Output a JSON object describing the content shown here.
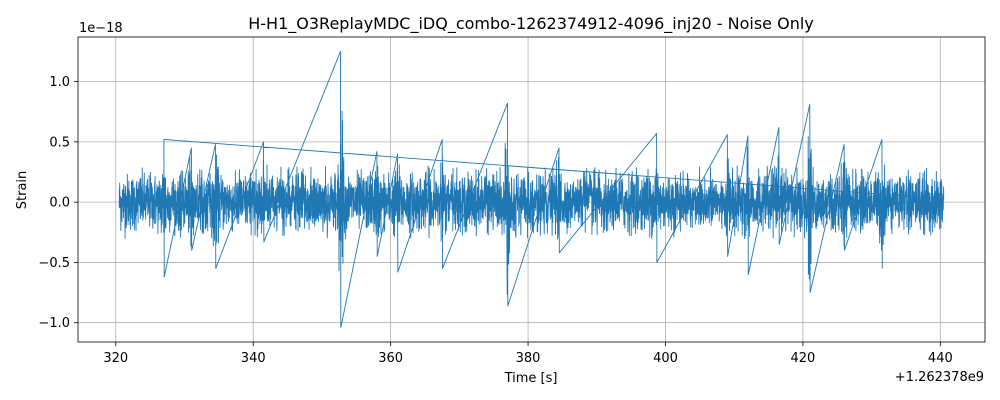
{
  "chart_data": {
    "type": "line",
    "title": "H-H1_O3ReplayMDC_iDQ_combo-1262374912-4096_inj20 - Noise Only",
    "xlabel": "Time [s]",
    "ylabel": "Strain",
    "x_offset_label": "+1.262378e9",
    "y_scale_label": "1e−18",
    "xlim": [
      314.5,
      446.5
    ],
    "ylim": [
      -1.16,
      1.37
    ],
    "x_ticks": [
      320,
      340,
      360,
      380,
      400,
      420,
      440
    ],
    "x_tick_labels": [
      "320",
      "340",
      "360",
      "380",
      "400",
      "420",
      "440"
    ],
    "y_ticks": [
      -1.0,
      -0.5,
      0.0,
      0.5,
      1.0
    ],
    "y_tick_labels": [
      "−1.0",
      "−0.5",
      "0.0",
      "0.5",
      "1.0"
    ],
    "grid": true,
    "series": [
      {
        "color": "#1f77b4",
        "x_start": 320.5,
        "x_end": 440.5,
        "baseline_envelope": 0.3,
        "features": [
          {
            "t": 327.0,
            "max": 0.52,
            "min": -0.62
          },
          {
            "t": 331.0,
            "max": 0.45,
            "min": -0.4
          },
          {
            "t": 334.5,
            "max": 0.48,
            "min": -0.55
          },
          {
            "t": 341.5,
            "max": 0.5,
            "min": -0.33
          },
          {
            "t": 352.7,
            "max": 1.25,
            "min": -1.04
          },
          {
            "t": 358.0,
            "max": 0.42,
            "min": -0.45
          },
          {
            "t": 361.0,
            "max": 0.4,
            "min": -0.58
          },
          {
            "t": 367.5,
            "max": 0.52,
            "min": -0.55
          },
          {
            "t": 377.0,
            "max": 0.82,
            "min": -0.86
          },
          {
            "t": 384.5,
            "max": 0.45,
            "min": -0.42
          },
          {
            "t": 398.7,
            "max": 0.57,
            "min": -0.5
          },
          {
            "t": 409.0,
            "max": 0.56,
            "min": -0.45
          },
          {
            "t": 412.0,
            "max": 0.55,
            "min": -0.6
          },
          {
            "t": 416.5,
            "max": 0.62,
            "min": -0.35
          },
          {
            "t": 421.0,
            "max": 0.81,
            "min": -0.75
          },
          {
            "t": 426.0,
            "max": 0.48,
            "min": -0.4
          },
          {
            "t": 431.5,
            "max": 0.52,
            "min": -0.55
          }
        ]
      }
    ]
  }
}
